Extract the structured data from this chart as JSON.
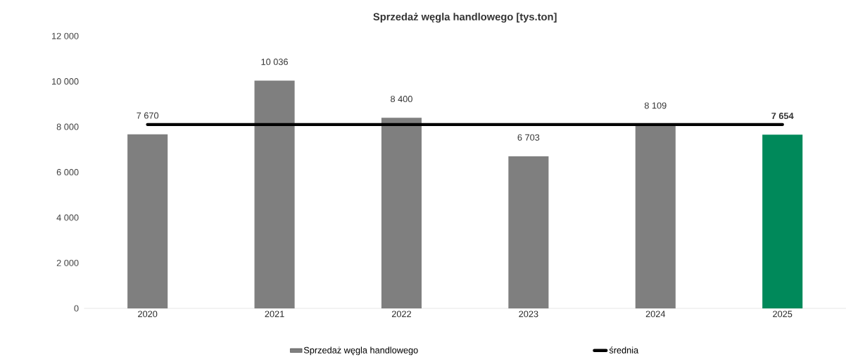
{
  "chart_data": {
    "type": "bar",
    "title": "Sprzedaż węgla handlowego [tys.ton]",
    "categories": [
      "2020",
      "2021",
      "2022",
      "2023",
      "2024",
      "2025"
    ],
    "series": [
      {
        "name": "Sprzedaż węgla handlowego",
        "color": "#7f7f7f",
        "colors": [
          "#7f7f7f",
          "#7f7f7f",
          "#7f7f7f",
          "#7f7f7f",
          "#7f7f7f",
          "#00895a"
        ],
        "values": [
          7670,
          10036,
          8400,
          6703,
          8109,
          7654
        ],
        "value_labels": [
          "7 670",
          "10 036",
          "8 400",
          "6 703",
          "8 109",
          "**7 654**"
        ]
      },
      {
        "name": "średnia",
        "type": "line",
        "color": "#000000",
        "line_style": "solid",
        "marker": "none",
        "values": [
          8100,
          8100,
          8100,
          8100,
          8100,
          8100
        ]
      }
    ],
    "ylim": [
      0,
      12000
    ],
    "yticks": [
      0,
      {
        "value": 2000,
        "label": "2 000"
      },
      {
        "value": 4000,
        "label": "4 000"
      },
      {
        "value": 6000,
        "label": "6 000"
      },
      {
        "value": 8000,
        "label": "8 000"
      },
      {
        "value": 10000,
        "label": "10 000"
      },
      {
        "value": 12000,
        "label": "12 000"
      }
    ],
    "grid": false,
    "legend": "bottom"
  }
}
